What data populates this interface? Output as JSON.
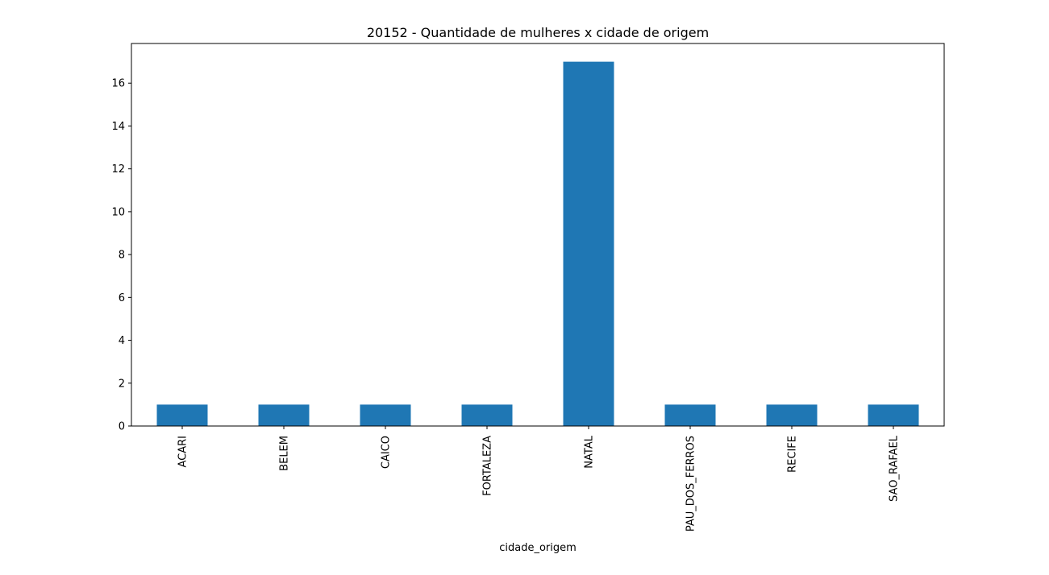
{
  "chart_data": {
    "type": "bar",
    "title": "20152 - Quantidade de mulheres x cidade de origem",
    "xlabel": "cidade_origem",
    "ylabel": "",
    "categories": [
      "ACARI",
      "BELEM",
      "CAICO",
      "FORTALEZA",
      "NATAL",
      "PAU_DOS_FERROS",
      "RECIFE",
      "SAO_RAFAEL"
    ],
    "values": [
      1,
      1,
      1,
      1,
      17,
      1,
      1,
      1
    ],
    "ylim": [
      0,
      17.85
    ],
    "yticks": [
      0,
      2,
      4,
      6,
      8,
      10,
      12,
      14,
      16
    ],
    "ytick_labels": [
      "0",
      "2",
      "4",
      "6",
      "8",
      "10",
      "12",
      "14",
      "16"
    ],
    "grid": false,
    "legend": "none",
    "bar_color": "#1f77b4"
  }
}
